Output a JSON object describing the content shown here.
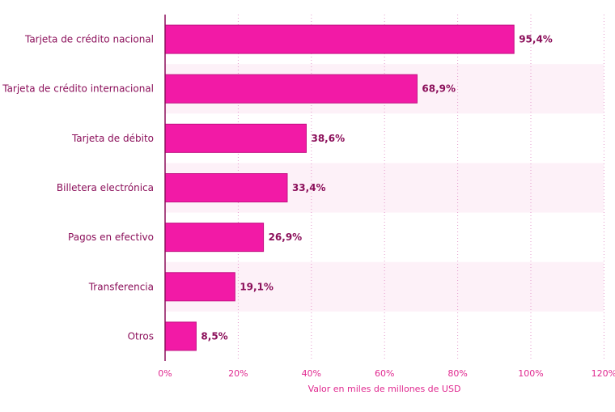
{
  "chart_data": {
    "type": "bar",
    "orientation": "horizontal",
    "categories": [
      "Tarjeta de crédito nacional",
      "Tarjeta de crédito internacional",
      "Tarjeta de débito",
      "Billetera electrónica",
      "Pagos en efectivo",
      "Transferencia",
      "Otros"
    ],
    "values": [
      95.4,
      68.9,
      38.6,
      33.4,
      26.9,
      19.1,
      8.5
    ],
    "value_labels": [
      "95,4%",
      "68,9%",
      "38,6%",
      "33,4%",
      "26,9%",
      "19,1%",
      "8,5%"
    ],
    "xlim": [
      0,
      120
    ],
    "x_ticks": [
      0,
      20,
      40,
      60,
      80,
      100,
      120
    ],
    "x_tick_labels": [
      "0%",
      "20%",
      "40%",
      "60%",
      "80%",
      "100%",
      "120%"
    ],
    "xlabel": "Valor en miles de millones de USD",
    "ylabel": "",
    "grid": "vertical dotted",
    "colors": {
      "bar": "#f21aa6",
      "bar_edge": "#c20f82",
      "band": "#fdf1f8",
      "grid": "#e49acb",
      "axis": "#8b0f5a",
      "label": "#8b0f5a",
      "tick": "#e0288f"
    }
  }
}
